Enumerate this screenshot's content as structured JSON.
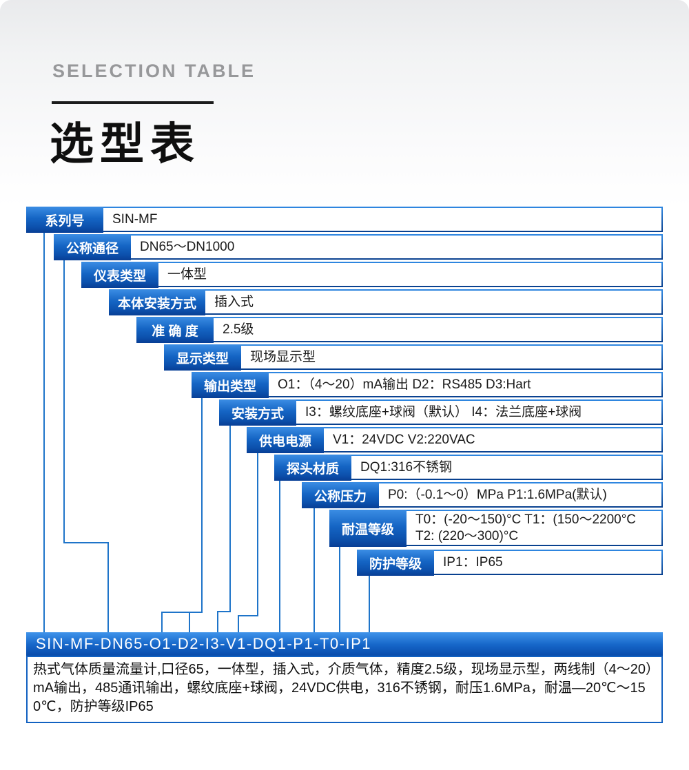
{
  "header": {
    "eyebrow": "SELECTION TABLE",
    "title": "选型表"
  },
  "table": {
    "rows": [
      {
        "label": "系列号",
        "value": "SIN-MF"
      },
      {
        "label": "公称通径",
        "value": "DN65～DN1000"
      },
      {
        "label": "仪表类型",
        "value": "一体型"
      },
      {
        "label": "本体安装方式",
        "value": "插入式"
      },
      {
        "label": "准 确 度",
        "value": "2.5级"
      },
      {
        "label": "显示类型",
        "value": "现场显示型"
      },
      {
        "label": "输出类型",
        "value": "O1：（4～20）mA输出 D2：RS485 D3:Hart"
      },
      {
        "label": "安装方式",
        "value": "I3：螺纹底座+球阀（默认） I4：法兰底座+球阀"
      },
      {
        "label": "供电电源",
        "value": "V1：24VDC V2:220VAC"
      },
      {
        "label": "探头材质",
        "value": "DQ1:316不锈钢"
      },
      {
        "label": "公称压力",
        "value": "P0:（-0.1～0）MPa P1:1.6MPa(默认)"
      },
      {
        "label": "耐温等级",
        "value": "T0：(-20～150)°C T1：(150～2200°C",
        "value2": "T2: (220～300)°C"
      },
      {
        "label": "防护等级",
        "value": "IP1：IP65"
      }
    ]
  },
  "model_bar": {
    "code": "SIN-MF-DN65-O1-D2-I3-V1-DQ1-P1-T0-IP1"
  },
  "description": {
    "text": "热式气体质量流量计,口径65，一体型，插入式，介质气体，精度2.5级，现场显示型，两线制（4～20）mA输出，485通讯输出，螺纹底座+球阀，24VDC供电，316不锈钢，耐压1.6MPa，耐温—20℃～150℃，防护等级IP65"
  },
  "colors": {
    "box_blue_top": "#3b8de4",
    "box_blue_bottom": "#083e95",
    "row_border_top": "#2f87e1",
    "row_border_bottom": "#09418f",
    "connector": "#1e74c9",
    "bar_top": "#3f93ea",
    "bar_bottom": "#0a4cab",
    "desc_border": "#1261c1"
  }
}
